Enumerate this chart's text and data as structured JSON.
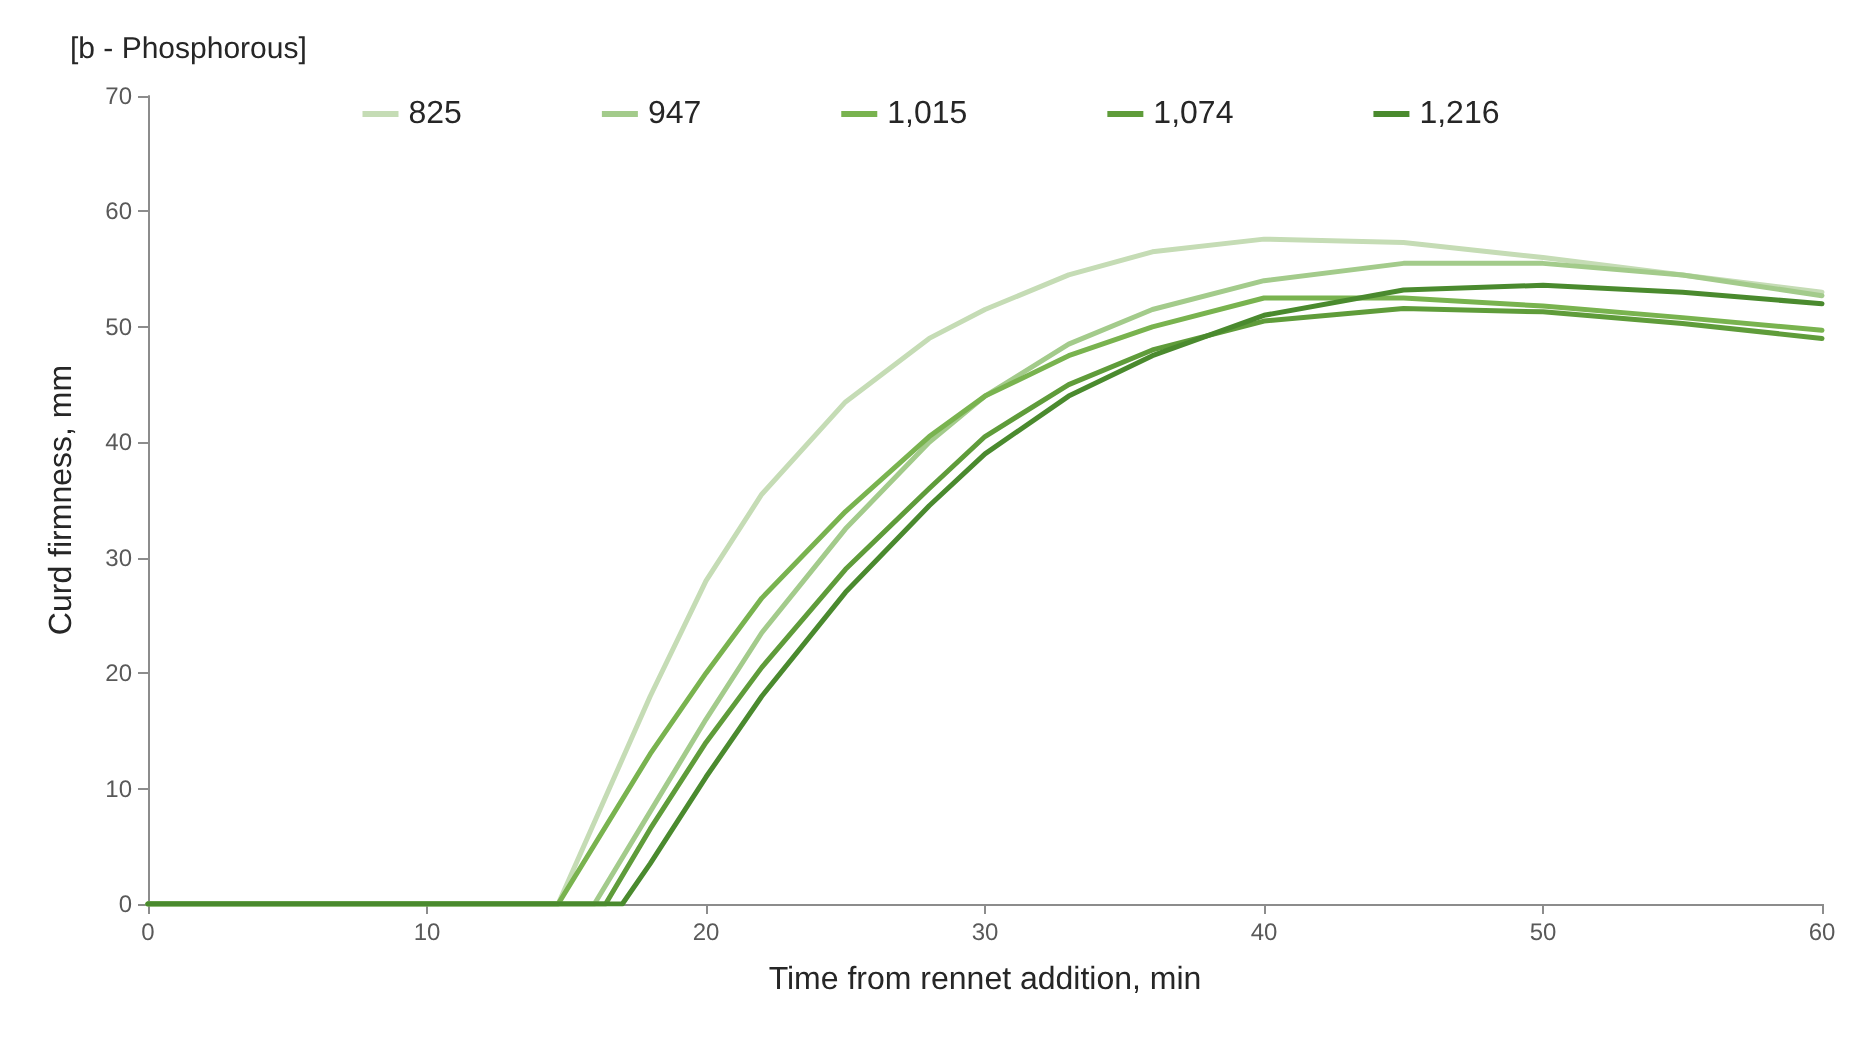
{
  "chart_data": {
    "type": "line",
    "title": "[b - Phosphorous]",
    "xlabel": "Time from rennet addition, min",
    "ylabel": "Curd firmness, mm",
    "xlim": [
      0,
      60
    ],
    "xticks": [
      0,
      10,
      20,
      30,
      40,
      50,
      60
    ],
    "ylim": [
      0,
      70
    ],
    "yticks": [
      0,
      10,
      20,
      30,
      40,
      50,
      60,
      70
    ],
    "grid": false,
    "legend": "top",
    "marker": "none",
    "line_style": "solid",
    "series": [
      {
        "name": "825",
        "color": "#c5dcb5",
        "x": [
          0,
          14.7,
          18,
          20,
          22,
          25,
          28,
          30,
          33,
          36,
          40,
          45,
          50,
          55,
          60
        ],
        "values": [
          0,
          0,
          18,
          28,
          35.5,
          43.5,
          49,
          51.5,
          54.5,
          56.5,
          57.6,
          57.3,
          56,
          54.5,
          53
        ]
      },
      {
        "name": "947",
        "color": "#a3cb8b",
        "x": [
          0,
          16,
          18,
          20,
          22,
          25,
          28,
          30,
          33,
          36,
          40,
          45,
          50,
          55,
          60
        ],
        "values": [
          0,
          0,
          8,
          16,
          23.5,
          32.5,
          40,
          44,
          48.5,
          51.5,
          54,
          55.5,
          55.5,
          54.5,
          52.7
        ]
      },
      {
        "name": "1,015",
        "color": "#79b34f",
        "x": [
          0,
          14.7,
          18,
          20,
          22,
          25,
          28,
          30,
          33,
          36,
          40,
          45,
          50,
          55,
          60
        ],
        "values": [
          0,
          0,
          13,
          20,
          26.5,
          34,
          40.5,
          44,
          47.5,
          50,
          52.5,
          52.5,
          51.8,
          50.8,
          49.7
        ]
      },
      {
        "name": "1,074",
        "color": "#5f9c3a",
        "x": [
          0,
          16.4,
          18,
          20,
          22,
          25,
          28,
          30,
          33,
          36,
          40,
          45,
          50,
          55,
          60
        ],
        "values": [
          0,
          0,
          6.5,
          14,
          20.5,
          29,
          36,
          40.5,
          45,
          48,
          50.5,
          51.6,
          51.3,
          50.3,
          49
        ]
      },
      {
        "name": "1,216",
        "color": "#4a8a2e",
        "x": [
          0,
          17,
          18,
          20,
          22,
          25,
          28,
          30,
          33,
          36,
          40,
          45,
          50,
          55,
          60
        ],
        "values": [
          0,
          0,
          3.5,
          11,
          18,
          27,
          34.5,
          39,
          44,
          47.5,
          51,
          53.2,
          53.6,
          53,
          52
        ]
      }
    ]
  }
}
